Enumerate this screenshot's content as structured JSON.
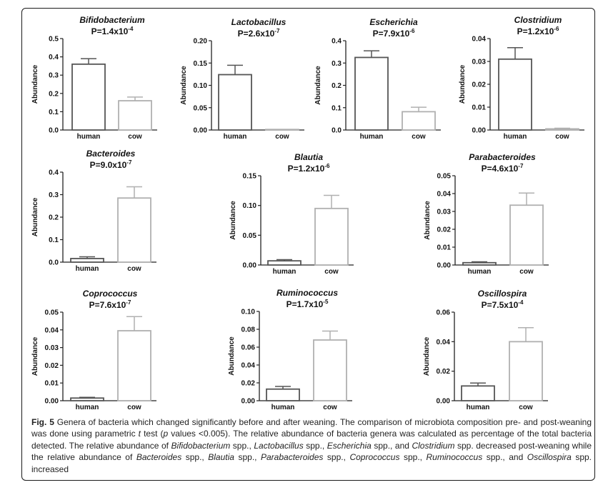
{
  "chart_data": [
    {
      "type": "bar",
      "title": "Bifidobacterium",
      "pvalue": {
        "base": "P=1.4x10",
        "exp": "-4"
      },
      "ylabel": "Abundance",
      "categories": [
        "human",
        "cow"
      ],
      "values": [
        0.36,
        0.16
      ],
      "errors": [
        0.03,
        0.02
      ],
      "ylim": [
        0,
        0.5
      ],
      "yticks": [
        "0.0",
        "0.1",
        "0.2",
        "0.3",
        "0.4",
        "0.5"
      ]
    },
    {
      "type": "bar",
      "title": "Lactobacillus",
      "pvalue": {
        "base": "P=2.6x10",
        "exp": "-7"
      },
      "ylabel": "Abundance",
      "categories": [
        "human",
        "cow"
      ],
      "values": [
        0.124,
        0.0
      ],
      "errors": [
        0.021,
        0.0
      ],
      "ylim": [
        0,
        0.2
      ],
      "yticks": [
        "0.00",
        "0.05",
        "0.10",
        "0.15",
        "0.20"
      ]
    },
    {
      "type": "bar",
      "title": "Escherichia",
      "pvalue": {
        "base": "P=7.9x10",
        "exp": "-6"
      },
      "ylabel": "Abundance",
      "categories": [
        "human",
        "cow"
      ],
      "values": [
        0.325,
        0.082
      ],
      "errors": [
        0.03,
        0.02
      ],
      "ylim": [
        0,
        0.4
      ],
      "yticks": [
        "0.0",
        "0.1",
        "0.2",
        "0.3",
        "0.4"
      ]
    },
    {
      "type": "bar",
      "title": "Clostridium",
      "pvalue": {
        "base": "P=1.2x10",
        "exp": "-6"
      },
      "ylabel": "Abundance",
      "categories": [
        "human",
        "cow"
      ],
      "values": [
        0.031,
        0.0005
      ],
      "errors": [
        0.005,
        0.0003
      ],
      "ylim": [
        0,
        0.04
      ],
      "yticks": [
        "0.00",
        "0.01",
        "0.02",
        "0.03",
        "0.04"
      ]
    },
    {
      "type": "bar",
      "title": "Bacteroides",
      "pvalue": {
        "base": "P=9.0x10",
        "exp": "-7"
      },
      "ylabel": "Abundance",
      "categories": [
        "human",
        "cow"
      ],
      "values": [
        0.016,
        0.285
      ],
      "errors": [
        0.008,
        0.05
      ],
      "ylim": [
        0,
        0.4
      ],
      "yticks": [
        "0.0",
        "0.1",
        "0.2",
        "0.3",
        "0.4"
      ]
    },
    {
      "type": "bar",
      "title": "Blautia",
      "pvalue": {
        "base": "P=1.2x10",
        "exp": "-6"
      },
      "ylabel": "Abundance",
      "categories": [
        "human",
        "cow"
      ],
      "values": [
        0.007,
        0.095
      ],
      "errors": [
        0.002,
        0.022
      ],
      "ylim": [
        0,
        0.15
      ],
      "yticks": [
        "0.00",
        "0.05",
        "0.10",
        "0.15"
      ]
    },
    {
      "type": "bar",
      "title": "Parabacteroides",
      "pvalue": {
        "base": "P=4.6x10",
        "exp": "-7"
      },
      "ylabel": "Abundance",
      "categories": [
        "human",
        "cow"
      ],
      "values": [
        0.0013,
        0.0335
      ],
      "errors": [
        0.0005,
        0.0068
      ],
      "ylim": [
        0,
        0.05
      ],
      "yticks": [
        "0.00",
        "0.01",
        "0.02",
        "0.03",
        "0.04",
        "0.05"
      ]
    },
    {
      "type": "bar",
      "title": "Coprococcus",
      "pvalue": {
        "base": "P=7.6x10",
        "exp": "-7"
      },
      "ylabel": "Abundance",
      "categories": [
        "human",
        "cow"
      ],
      "values": [
        0.0015,
        0.0395
      ],
      "errors": [
        0.0004,
        0.008
      ],
      "ylim": [
        0,
        0.05
      ],
      "yticks": [
        "0.00",
        "0.01",
        "0.02",
        "0.03",
        "0.04",
        "0.05"
      ]
    },
    {
      "type": "bar",
      "title": "Ruminococcus",
      "pvalue": {
        "base": "P=1.7x10",
        "exp": "-5"
      },
      "ylabel": "Abundance",
      "categories": [
        "human",
        "cow"
      ],
      "values": [
        0.013,
        0.068
      ],
      "errors": [
        0.003,
        0.01
      ],
      "ylim": [
        0,
        0.1
      ],
      "yticks": [
        "0.00",
        "0.02",
        "0.04",
        "0.06",
        "0.08",
        "0.10"
      ]
    },
    {
      "type": "bar",
      "title": "Oscillospira",
      "pvalue": {
        "base": "P=7.5x10",
        "exp": "-4"
      },
      "ylabel": "Abundance",
      "categories": [
        "human",
        "cow"
      ],
      "values": [
        0.01,
        0.04
      ],
      "errors": [
        0.002,
        0.0095
      ],
      "ylim": [
        0,
        0.06
      ],
      "yticks": [
        "0.00",
        "0.02",
        "0.04",
        "0.06"
      ]
    }
  ],
  "caption": {
    "label": "Fig. 5",
    "segments": [
      {
        "t": " Genera of bacteria which changed significantly before and after weaning. The comparison of microbiota composition pre- and post-weaning was done using parametric ",
        "i": false
      },
      {
        "t": "t",
        "i": true
      },
      {
        "t": " test (",
        "i": false
      },
      {
        "t": "p",
        "i": true
      },
      {
        "t": " values <0.005). The relative abundance of bacteria genera was calculated as percentage of the total bacteria detected. The relative abundance of ",
        "i": false
      },
      {
        "t": "Bifidobacterium",
        "i": true
      },
      {
        "t": " spp., ",
        "i": false
      },
      {
        "t": "Lactobacillus",
        "i": true
      },
      {
        "t": " spp., ",
        "i": false
      },
      {
        "t": "Escherichia",
        "i": true
      },
      {
        "t": " spp., and ",
        "i": false
      },
      {
        "t": "Clostridium",
        "i": true
      },
      {
        "t": " spp. decreased post-weaning while the relative abundance of ",
        "i": false
      },
      {
        "t": "Bacteroides",
        "i": true
      },
      {
        "t": " spp., ",
        "i": false
      },
      {
        "t": "Blautia",
        "i": true
      },
      {
        "t": " spp., ",
        "i": false
      },
      {
        "t": "Parabacteroides",
        "i": true
      },
      {
        "t": " spp., ",
        "i": false
      },
      {
        "t": "Coprococcus",
        "i": true
      },
      {
        "t": " spp., ",
        "i": false
      },
      {
        "t": "Ruminococcus",
        "i": true
      },
      {
        "t": " spp., and ",
        "i": false
      },
      {
        "t": "Oscillospira",
        "i": true
      },
      {
        "t": " spp. increased",
        "i": false
      }
    ]
  },
  "colors": {
    "human": "#555555",
    "cow": "#b0b0b0",
    "axis": "#222222"
  }
}
